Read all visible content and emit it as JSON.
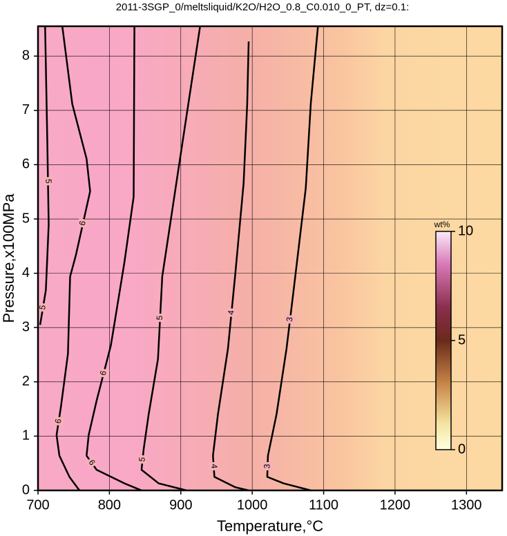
{
  "chart_data": {
    "type": "contour",
    "title": "2011-3SGP_0/meltsliquid/K2O/H2O_0.8_C0.010_0_PT, dz=0.1:",
    "x_label": "Temperature,°C",
    "y_label": "Pressure,x100MPa",
    "xlim": [
      700,
      1350
    ],
    "ylim": [
      0,
      8.55
    ],
    "xticks": [
      700,
      800,
      900,
      1000,
      1100,
      1200,
      1300
    ],
    "yticks": [
      0,
      1,
      2,
      3,
      4,
      5,
      6,
      7,
      8
    ],
    "grid": true,
    "colorbar": {
      "label": "wt%",
      "lim": [
        0,
        10
      ],
      "ticks": [
        0,
        5,
        10
      ]
    },
    "contours": [
      {
        "level": 5,
        "points": [
          [
            710,
            8.55
          ],
          [
            713,
            6.49
          ],
          [
            715,
            4.9
          ],
          [
            711,
            3.69
          ],
          [
            703,
            3.05
          ]
        ]
      },
      {
        "level": 6,
        "points": [
          [
            734,
            8.55
          ],
          [
            748,
            7.12
          ],
          [
            768,
            6.11
          ],
          [
            773,
            5.51
          ],
          [
            753,
            4.33
          ],
          [
            745,
            3.94
          ],
          [
            742,
            2.52
          ],
          [
            732,
            1.53
          ],
          [
            726,
            1.02
          ],
          [
            730,
            0.64
          ],
          [
            744,
            0.25
          ],
          [
            758,
            0
          ]
        ]
      },
      {
        "level": 6,
        "points": [
          [
            835,
            8.55
          ],
          [
            834,
            5.41
          ],
          [
            821,
            4.2
          ],
          [
            802,
            2.67
          ],
          [
            782,
            1.65
          ],
          [
            771,
            1.02
          ],
          [
            768,
            0.64
          ],
          [
            782,
            0.38
          ],
          [
            821,
            0.13
          ],
          [
            845,
            0
          ]
        ]
      },
      {
        "level": 5,
        "points": [
          [
            927,
            8.55
          ],
          [
            892,
            5.51
          ],
          [
            874,
            3.94
          ],
          [
            868,
            2.42
          ],
          [
            855,
            1.4
          ],
          [
            848,
            0.76
          ],
          [
            845,
            0.38
          ],
          [
            869,
            0.13
          ],
          [
            908,
            0
          ]
        ]
      },
      {
        "level": 4,
        "points": [
          [
            995,
            8.27
          ],
          [
            993,
            7.12
          ],
          [
            988,
            5.66
          ],
          [
            976,
            3.94
          ],
          [
            966,
            2.61
          ],
          [
            952,
            1.4
          ],
          [
            945,
            0.64
          ],
          [
            947,
            0.25
          ],
          [
            976,
            0.06
          ],
          [
            995,
            0
          ]
        ]
      },
      {
        "level": 3,
        "points": [
          [
            1092,
            8.55
          ],
          [
            1082,
            7.12
          ],
          [
            1075,
            5.57
          ],
          [
            1058,
            3.69
          ],
          [
            1048,
            2.61
          ],
          [
            1034,
            1.4
          ],
          [
            1022,
            0.64
          ],
          [
            1021,
            0.25
          ],
          [
            1044,
            0.13
          ],
          [
            1082,
            0
          ]
        ]
      }
    ]
  }
}
